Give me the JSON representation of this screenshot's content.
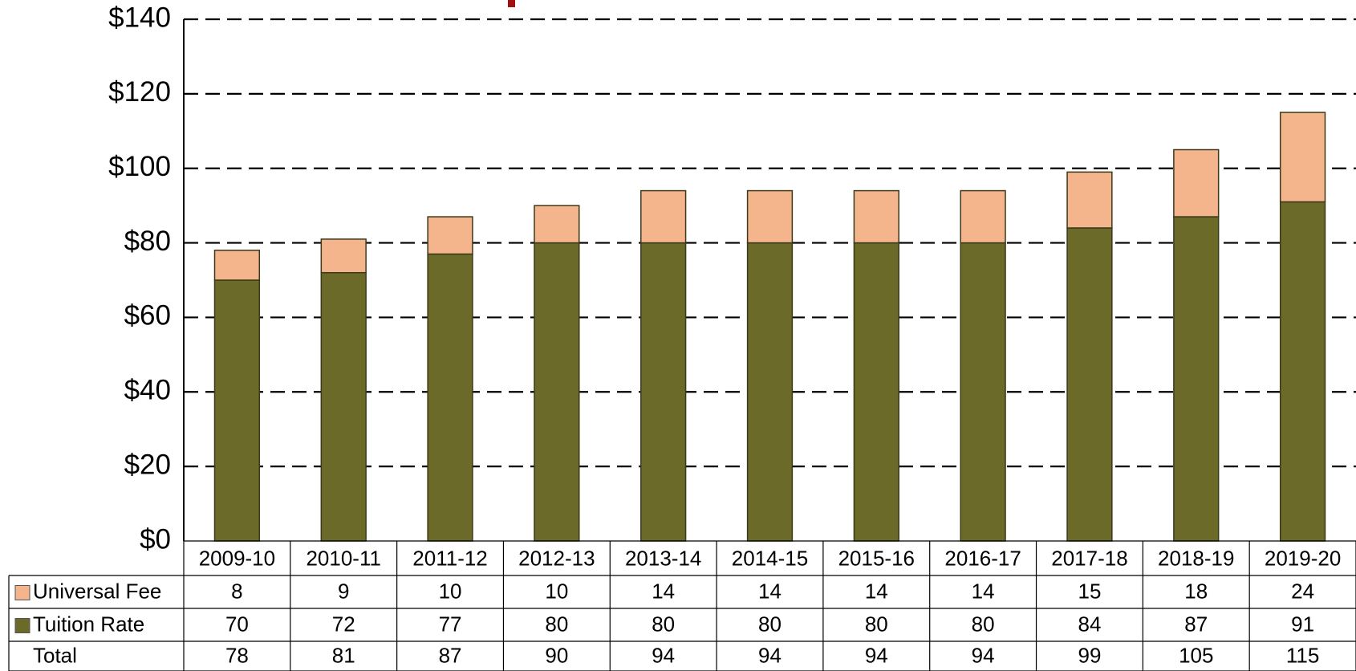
{
  "chart_data": {
    "type": "stacked_bar",
    "categories": [
      "2009-10",
      "2010-11",
      "2011-12",
      "2012-13",
      "2013-14",
      "2014-15",
      "2015-16",
      "2016-17",
      "2017-18",
      "2018-19",
      "2019-20"
    ],
    "series": [
      {
        "name": "Universal Fee",
        "color": "#f4b48c",
        "values": [
          8,
          9,
          10,
          10,
          14,
          14,
          14,
          14,
          15,
          18,
          24
        ]
      },
      {
        "name": "Tuition Rate",
        "color": "#6b6a28",
        "values": [
          70,
          72,
          77,
          80,
          80,
          80,
          80,
          80,
          84,
          87,
          91
        ]
      }
    ],
    "total_label": "Total",
    "totals": [
      78,
      81,
      87,
      90,
      94,
      94,
      94,
      94,
      99,
      105,
      115
    ],
    "ylim": [
      0,
      140
    ],
    "yticks": [
      {
        "value": 0,
        "label": "$0"
      },
      {
        "value": 20,
        "label": "$20"
      },
      {
        "value": 40,
        "label": "$40"
      },
      {
        "value": 60,
        "label": "$60"
      },
      {
        "value": 80,
        "label": "$80"
      },
      {
        "value": 100,
        "label": "$100"
      },
      {
        "value": 120,
        "label": "$120"
      },
      {
        "value": 140,
        "label": "$140"
      }
    ],
    "grid": true
  }
}
